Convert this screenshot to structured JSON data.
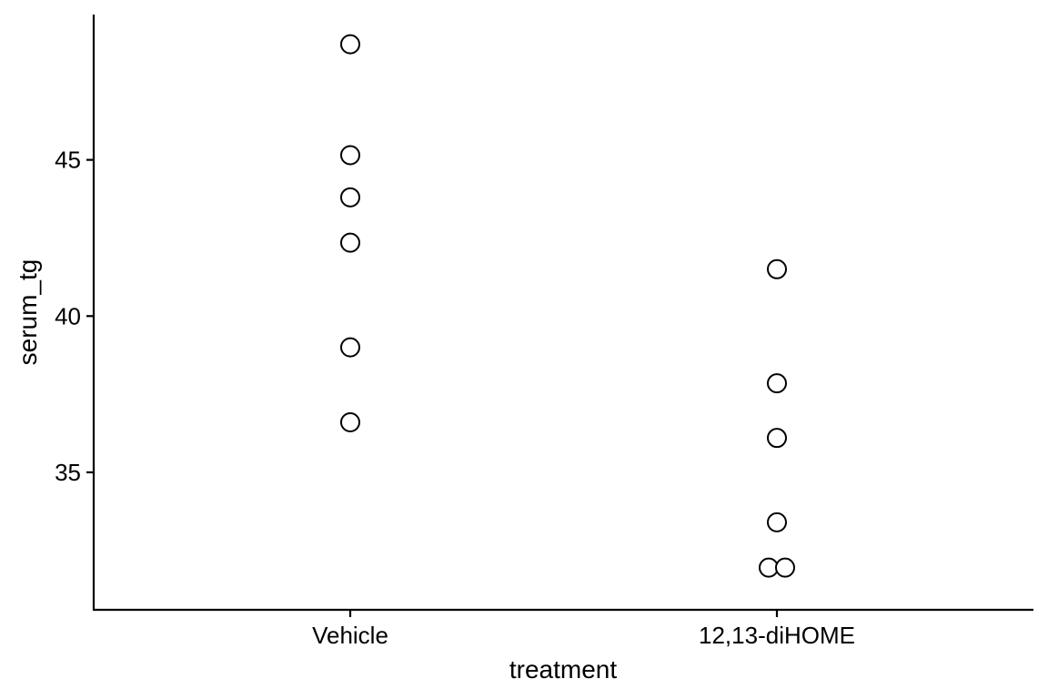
{
  "chart_data": {
    "type": "scatter",
    "title": "",
    "xlabel": "treatment",
    "ylabel": "serum_tg",
    "categories": [
      "Vehicle",
      "12,13-diHOME"
    ],
    "ylim": [
      30.6,
      49.65
    ],
    "yticks": [
      35,
      40,
      45
    ],
    "grid": false,
    "legend": "none",
    "points": [
      {
        "category": "Vehicle",
        "y": 48.7,
        "offset": 0
      },
      {
        "category": "Vehicle",
        "y": 45.15,
        "offset": 0
      },
      {
        "category": "Vehicle",
        "y": 43.8,
        "offset": 0
      },
      {
        "category": "Vehicle",
        "y": 42.35,
        "offset": 0
      },
      {
        "category": "Vehicle",
        "y": 39.0,
        "offset": 0
      },
      {
        "category": "Vehicle",
        "y": 36.6,
        "offset": 0
      },
      {
        "category": "12,13-diHOME",
        "y": 41.5,
        "offset": 0
      },
      {
        "category": "12,13-diHOME",
        "y": 37.85,
        "offset": 0
      },
      {
        "category": "12,13-diHOME",
        "y": 36.1,
        "offset": 0
      },
      {
        "category": "12,13-diHOME",
        "y": 33.4,
        "offset": 0
      },
      {
        "category": "12,13-diHOME",
        "y": 31.95,
        "offset": -1
      },
      {
        "category": "12,13-diHOME",
        "y": 31.95,
        "offset": 1
      }
    ],
    "colors": {
      "point_fill": "#ffffff",
      "point_stroke": "#000000",
      "axis": "#000000"
    }
  }
}
